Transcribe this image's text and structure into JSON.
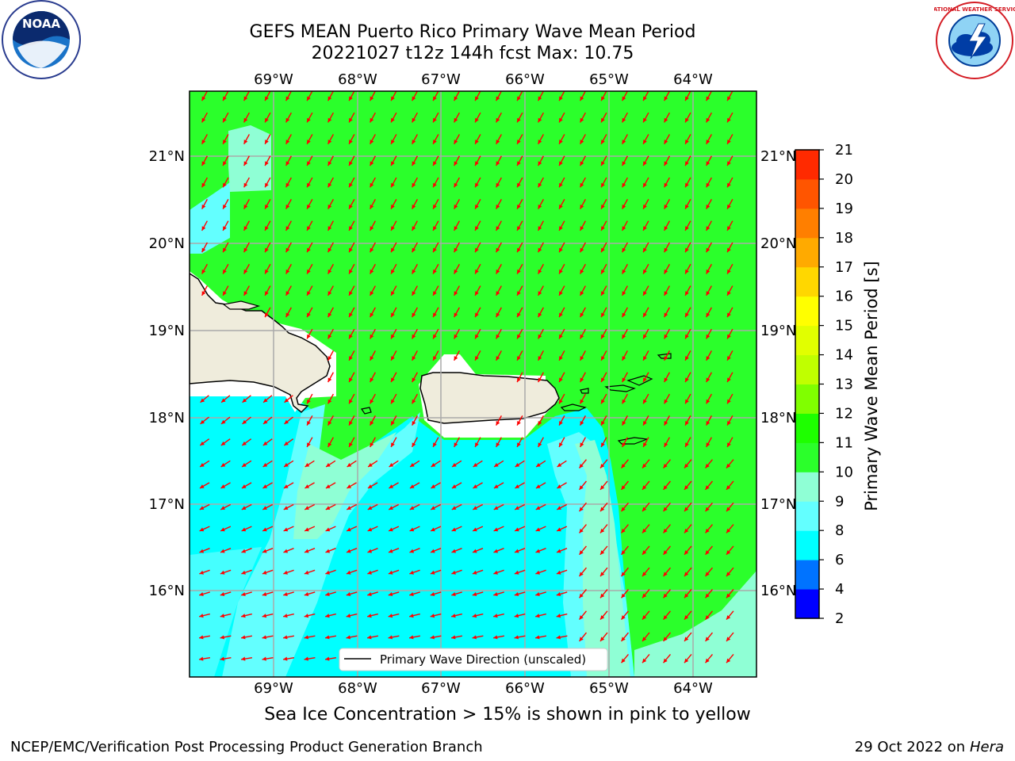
{
  "header": {
    "title_line1": "GEFS MEAN Puerto Rico Primary Wave Mean Period",
    "title_line2": "20221027 t12z 144h fcst   Max: 10.75"
  },
  "logos": {
    "noaa": {
      "text": "NOAA",
      "icon": "noaa-logo"
    },
    "nws": {
      "text": "NATIONAL WEATHER SERVICE",
      "icon": "nws-logo"
    }
  },
  "map": {
    "lon_labels": [
      "69°W",
      "68°W",
      "67°W",
      "66°W",
      "65°W",
      "64°W"
    ],
    "lat_labels": [
      "21°N",
      "20°N",
      "19°N",
      "18°N",
      "17°N",
      "16°N"
    ],
    "legend_label": "Primary Wave Direction (unscaled)",
    "arrow_color": "#ff0000",
    "land_color": "#efecdc",
    "grid": true
  },
  "colorbar": {
    "label": "Primary Wave Mean Period [s]",
    "ticks": [
      "2",
      "4",
      "6",
      "8",
      "9",
      "10",
      "11",
      "12",
      "13",
      "14",
      "15",
      "16",
      "17",
      "18",
      "19",
      "20",
      "21"
    ],
    "colors": [
      "#0000ff",
      "#0073ff",
      "#00ffff",
      "#63ffff",
      "#8fffd5",
      "#2bff2b",
      "#1eff00",
      "#80ff00",
      "#c0ff00",
      "#e1ff00",
      "#ffff00",
      "#ffd700",
      "#ffaa00",
      "#ff7f00",
      "#ff5500",
      "#ff2a00",
      "#ff0000"
    ]
  },
  "footnote": "Sea Ice Concentration > 15% is shown in pink to yellow",
  "footer": {
    "left": "NCEP/EMC/Verification Post Processing Product Generation Branch",
    "right_prefix": "29 Oct 2022 on ",
    "right_host": "Hera"
  }
}
